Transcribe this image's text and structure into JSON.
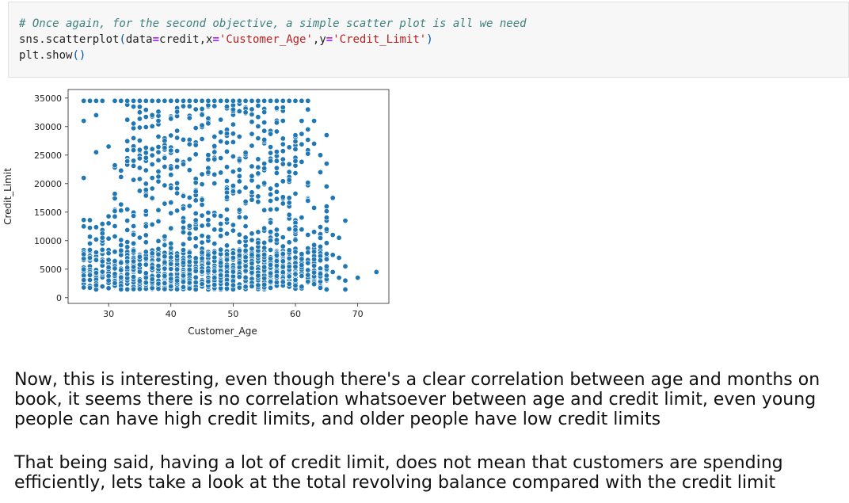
{
  "code_cell": {
    "comment": "# Once again, for the second objective, a simple scatter plot is all we need",
    "line2": {
      "func": "sns.scatterplot",
      "open": "(",
      "arg1_name": "data",
      "eq": "=",
      "arg1_value": "credit,x",
      "arg2_value": "'Customer_Age'",
      "sep": ",y",
      "arg3_value": "'Credit_Limit'",
      "close": ")"
    },
    "line3": {
      "func": "plt.show",
      "parens": "()"
    }
  },
  "chart_data": {
    "type": "scatter",
    "xlabel": "Customer_Age",
    "ylabel": "Credit_Limit",
    "xlim": [
      23.5,
      75
    ],
    "ylim": [
      -1000,
      36500
    ],
    "xticks": [
      30,
      40,
      50,
      60,
      70
    ],
    "yticks": [
      0,
      5000,
      10000,
      15000,
      20000,
      25000,
      30000,
      35000
    ],
    "grid": false,
    "point_color": "#1f77b4",
    "dense_region": {
      "age_min": 26,
      "age_max": 65,
      "credit_min": 1438,
      "credit_max": 34516
    },
    "points": [
      {
        "x": 26,
        "y": 12500
      },
      {
        "x": 26,
        "y": 21000
      },
      {
        "x": 26,
        "y": 31000
      },
      {
        "x": 26,
        "y": 34516
      },
      {
        "x": 27,
        "y": 34516
      },
      {
        "x": 28,
        "y": 34516
      },
      {
        "x": 28,
        "y": 32000
      },
      {
        "x": 28,
        "y": 25500
      },
      {
        "x": 29,
        "y": 34516
      },
      {
        "x": 30,
        "y": 26500
      },
      {
        "x": 31,
        "y": 34516
      },
      {
        "x": 32,
        "y": 34516
      },
      {
        "x": 33,
        "y": 34516
      },
      {
        "x": 34,
        "y": 34516
      },
      {
        "x": 35,
        "y": 34516
      },
      {
        "x": 36,
        "y": 34516
      },
      {
        "x": 37,
        "y": 34516
      },
      {
        "x": 38,
        "y": 34516
      },
      {
        "x": 39,
        "y": 34516
      },
      {
        "x": 40,
        "y": 34516
      },
      {
        "x": 41,
        "y": 34516
      },
      {
        "x": 42,
        "y": 34516
      },
      {
        "x": 43,
        "y": 34516
      },
      {
        "x": 44,
        "y": 34516
      },
      {
        "x": 45,
        "y": 34516
      },
      {
        "x": 46,
        "y": 34516
      },
      {
        "x": 47,
        "y": 34516
      },
      {
        "x": 48,
        "y": 34516
      },
      {
        "x": 49,
        "y": 34516
      },
      {
        "x": 50,
        "y": 34516
      },
      {
        "x": 51,
        "y": 34516
      },
      {
        "x": 52,
        "y": 34516
      },
      {
        "x": 53,
        "y": 34516
      },
      {
        "x": 54,
        "y": 34516
      },
      {
        "x": 55,
        "y": 34516
      },
      {
        "x": 56,
        "y": 34516
      },
      {
        "x": 57,
        "y": 34516
      },
      {
        "x": 58,
        "y": 34516
      },
      {
        "x": 59,
        "y": 34516
      },
      {
        "x": 60,
        "y": 34516
      },
      {
        "x": 61,
        "y": 34516
      },
      {
        "x": 62,
        "y": 34516
      },
      {
        "x": 61,
        "y": 31000
      },
      {
        "x": 62,
        "y": 29500
      },
      {
        "x": 63,
        "y": 31000
      },
      {
        "x": 63,
        "y": 27000
      },
      {
        "x": 64,
        "y": 25000
      },
      {
        "x": 64,
        "y": 22000
      },
      {
        "x": 65,
        "y": 28500
      },
      {
        "x": 65,
        "y": 23500
      },
      {
        "x": 65,
        "y": 19500
      },
      {
        "x": 65,
        "y": 16000
      },
      {
        "x": 65,
        "y": 12000
      },
      {
        "x": 66,
        "y": 17500
      },
      {
        "x": 66,
        "y": 11000
      },
      {
        "x": 66,
        "y": 7500
      },
      {
        "x": 66,
        "y": 4500
      },
      {
        "x": 67,
        "y": 10500
      },
      {
        "x": 67,
        "y": 7000
      },
      {
        "x": 67,
        "y": 3500
      },
      {
        "x": 68,
        "y": 13500
      },
      {
        "x": 68,
        "y": 5500
      },
      {
        "x": 68,
        "y": 3000
      },
      {
        "x": 68,
        "y": 1438
      },
      {
        "x": 70,
        "y": 3500
      },
      {
        "x": 73,
        "y": 4500
      }
    ]
  },
  "markdown": {
    "para1": "Now, this is interesting, even though there's a clear correlation between age and months on book, it seems there is no correlation whatsoever between age and credit limit, even young people can have high credit limits, and older people have low credit limits",
    "para2": "That being said, having a lot of credit limit, does not mean that customers are spending efficiently, lets take a look at the total revolving balance compared with the credit limit"
  }
}
